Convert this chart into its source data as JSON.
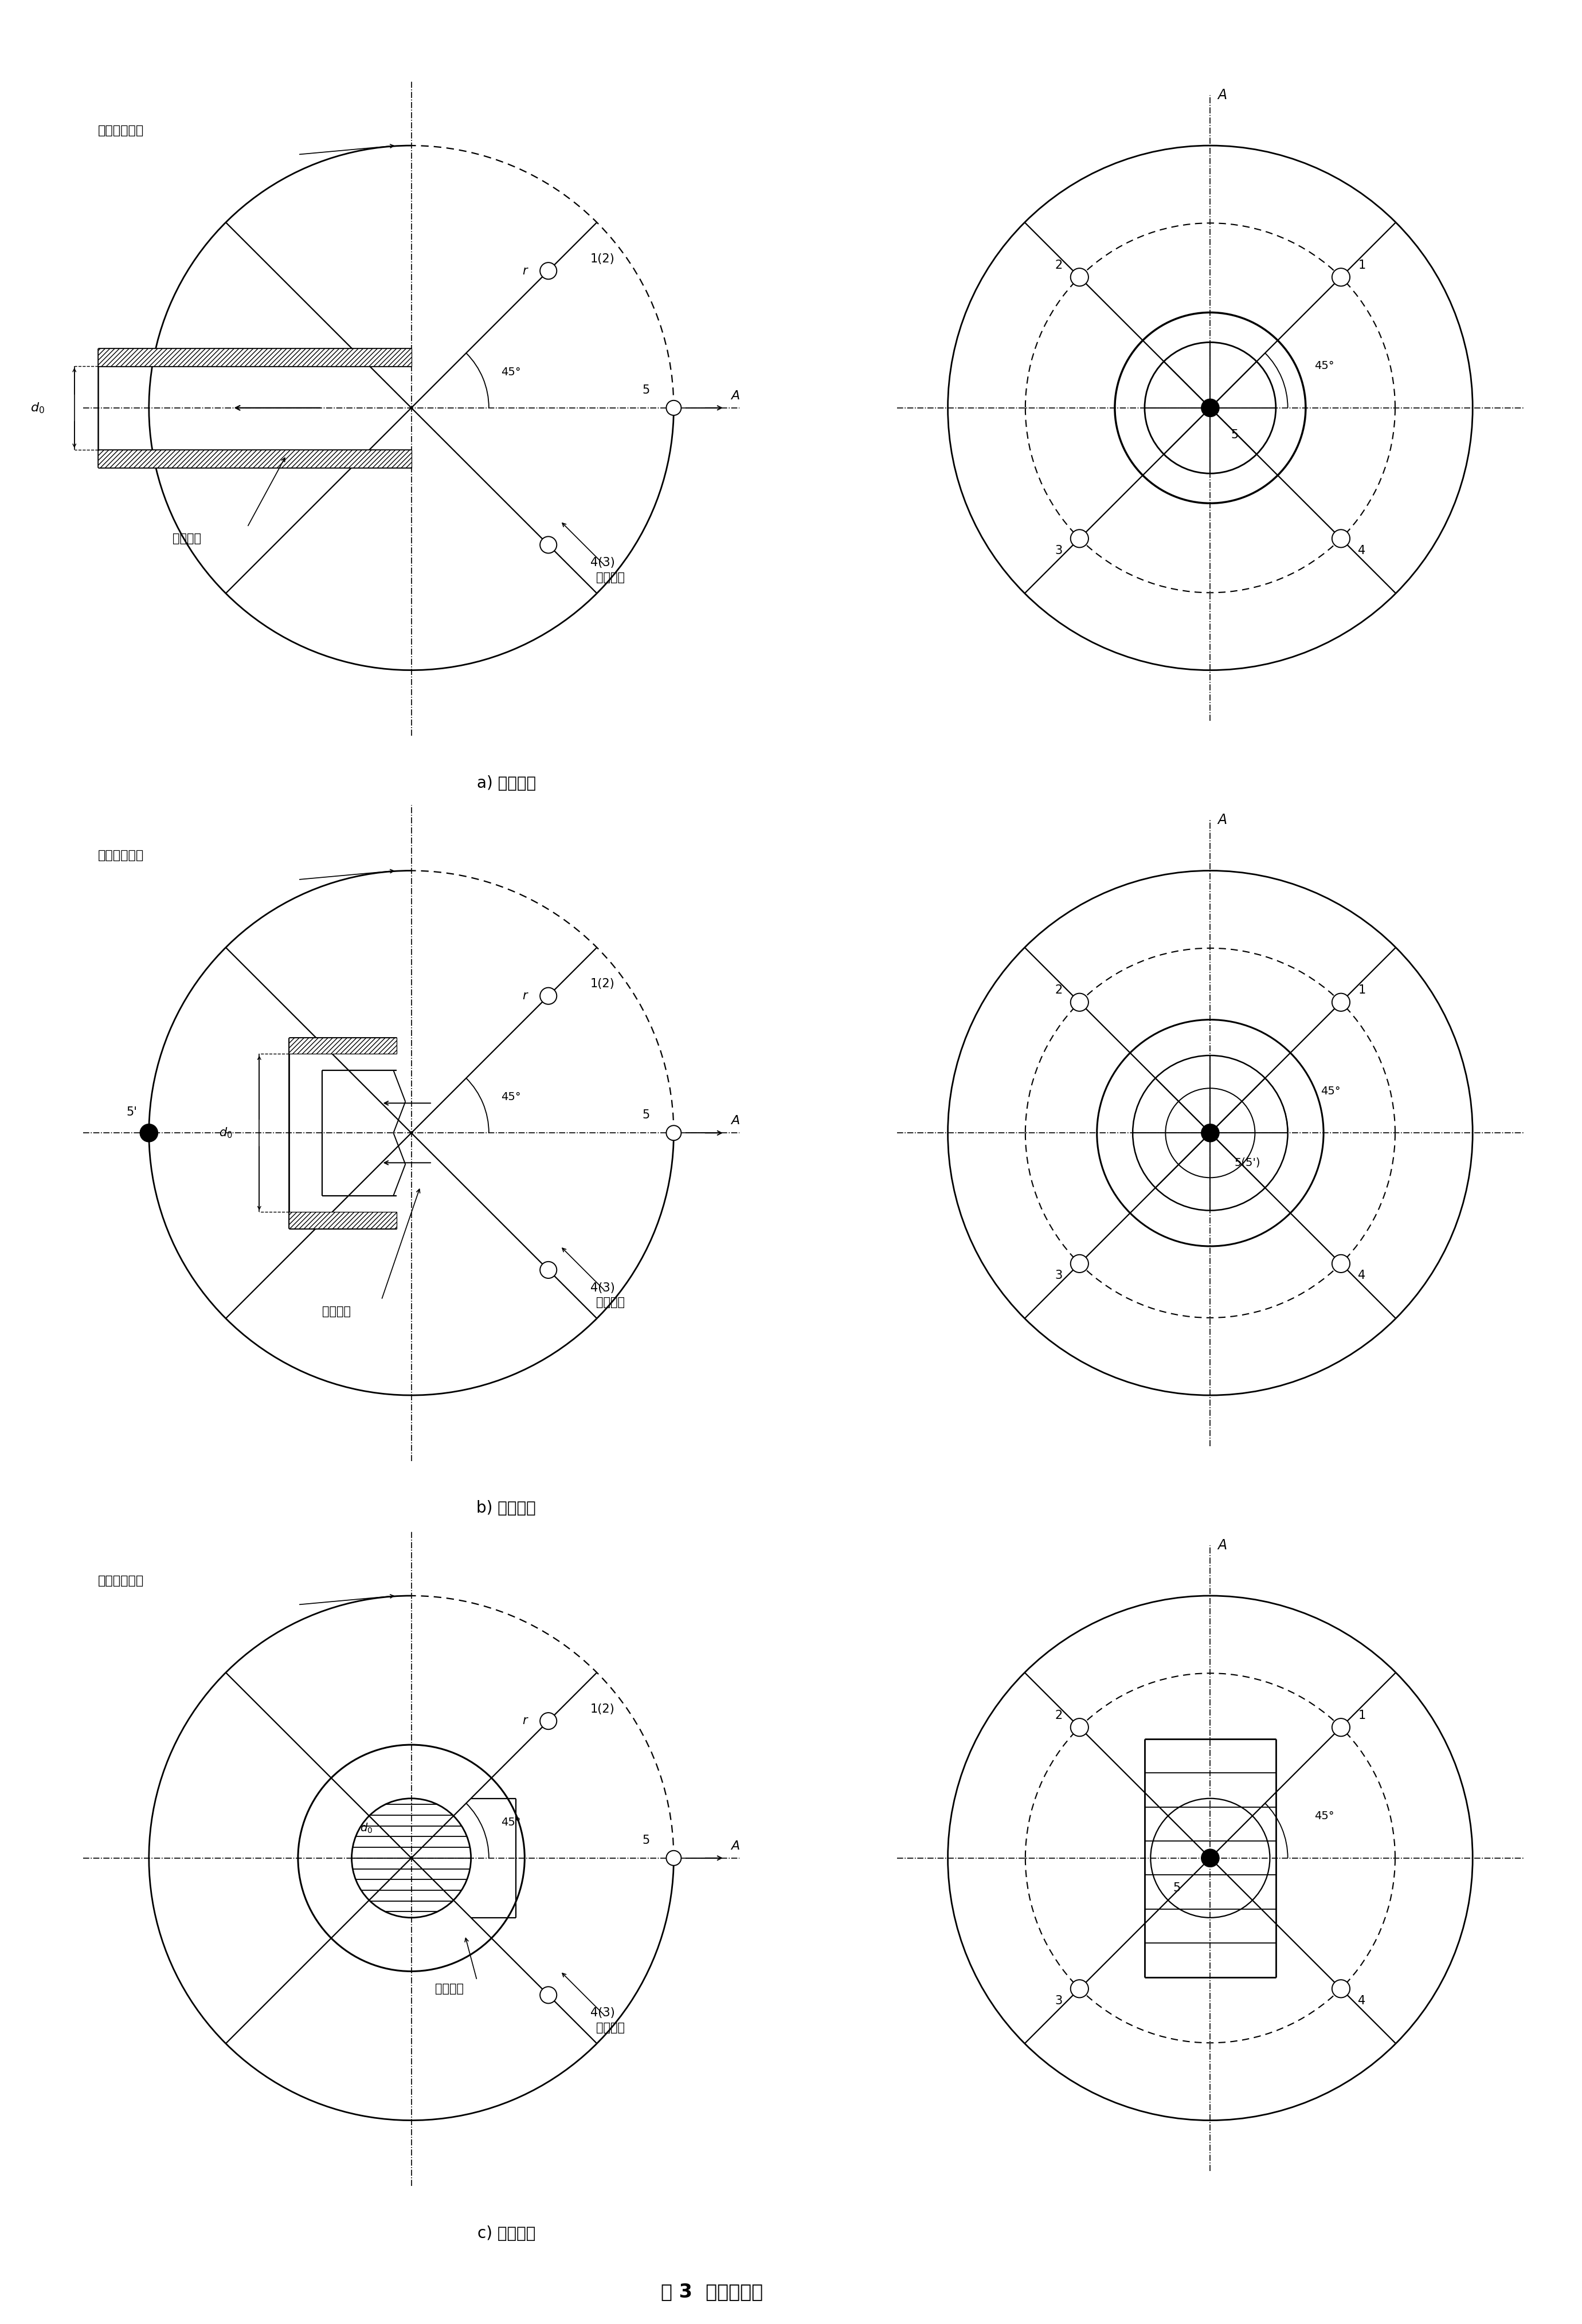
{
  "title": "图 3  传声器布置",
  "subtitle_a": "a) 管式进气",
  "subtitle_b": "b) 周向进气",
  "subtitle_c": "c) 局部进气",
  "fig_width": 27.6,
  "fig_height": 40.56,
  "bg_color": "#ffffff"
}
